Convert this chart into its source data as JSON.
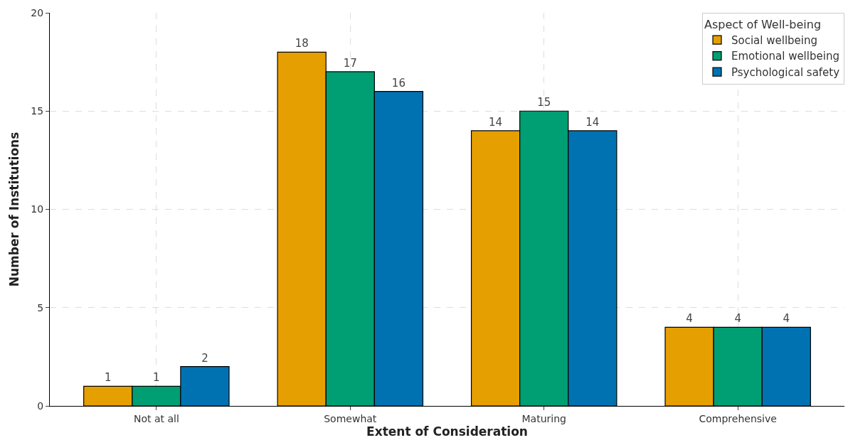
{
  "chart_data": {
    "type": "bar",
    "xlabel": "Extent of Consideration",
    "ylabel": "Number of Institutions",
    "legend_title": "Aspect of Well-being",
    "categories": [
      "Not at all",
      "Somewhat",
      "Maturing",
      "Comprehensive"
    ],
    "series": [
      {
        "name": "Social wellbeing",
        "color": "#e69f00",
        "values": [
          1,
          18,
          14,
          4
        ]
      },
      {
        "name": "Emotional wellbeing",
        "color": "#009e73",
        "values": [
          1,
          17,
          15,
          4
        ]
      },
      {
        "name": "Psychological safety",
        "color": "#0072b2",
        "values": [
          2,
          16,
          14,
          4
        ]
      }
    ],
    "ylim": [
      0,
      20
    ],
    "yticks": [
      0,
      5,
      10,
      15,
      20
    ],
    "grid": true,
    "legend": "top right",
    "data_labels": true
  }
}
